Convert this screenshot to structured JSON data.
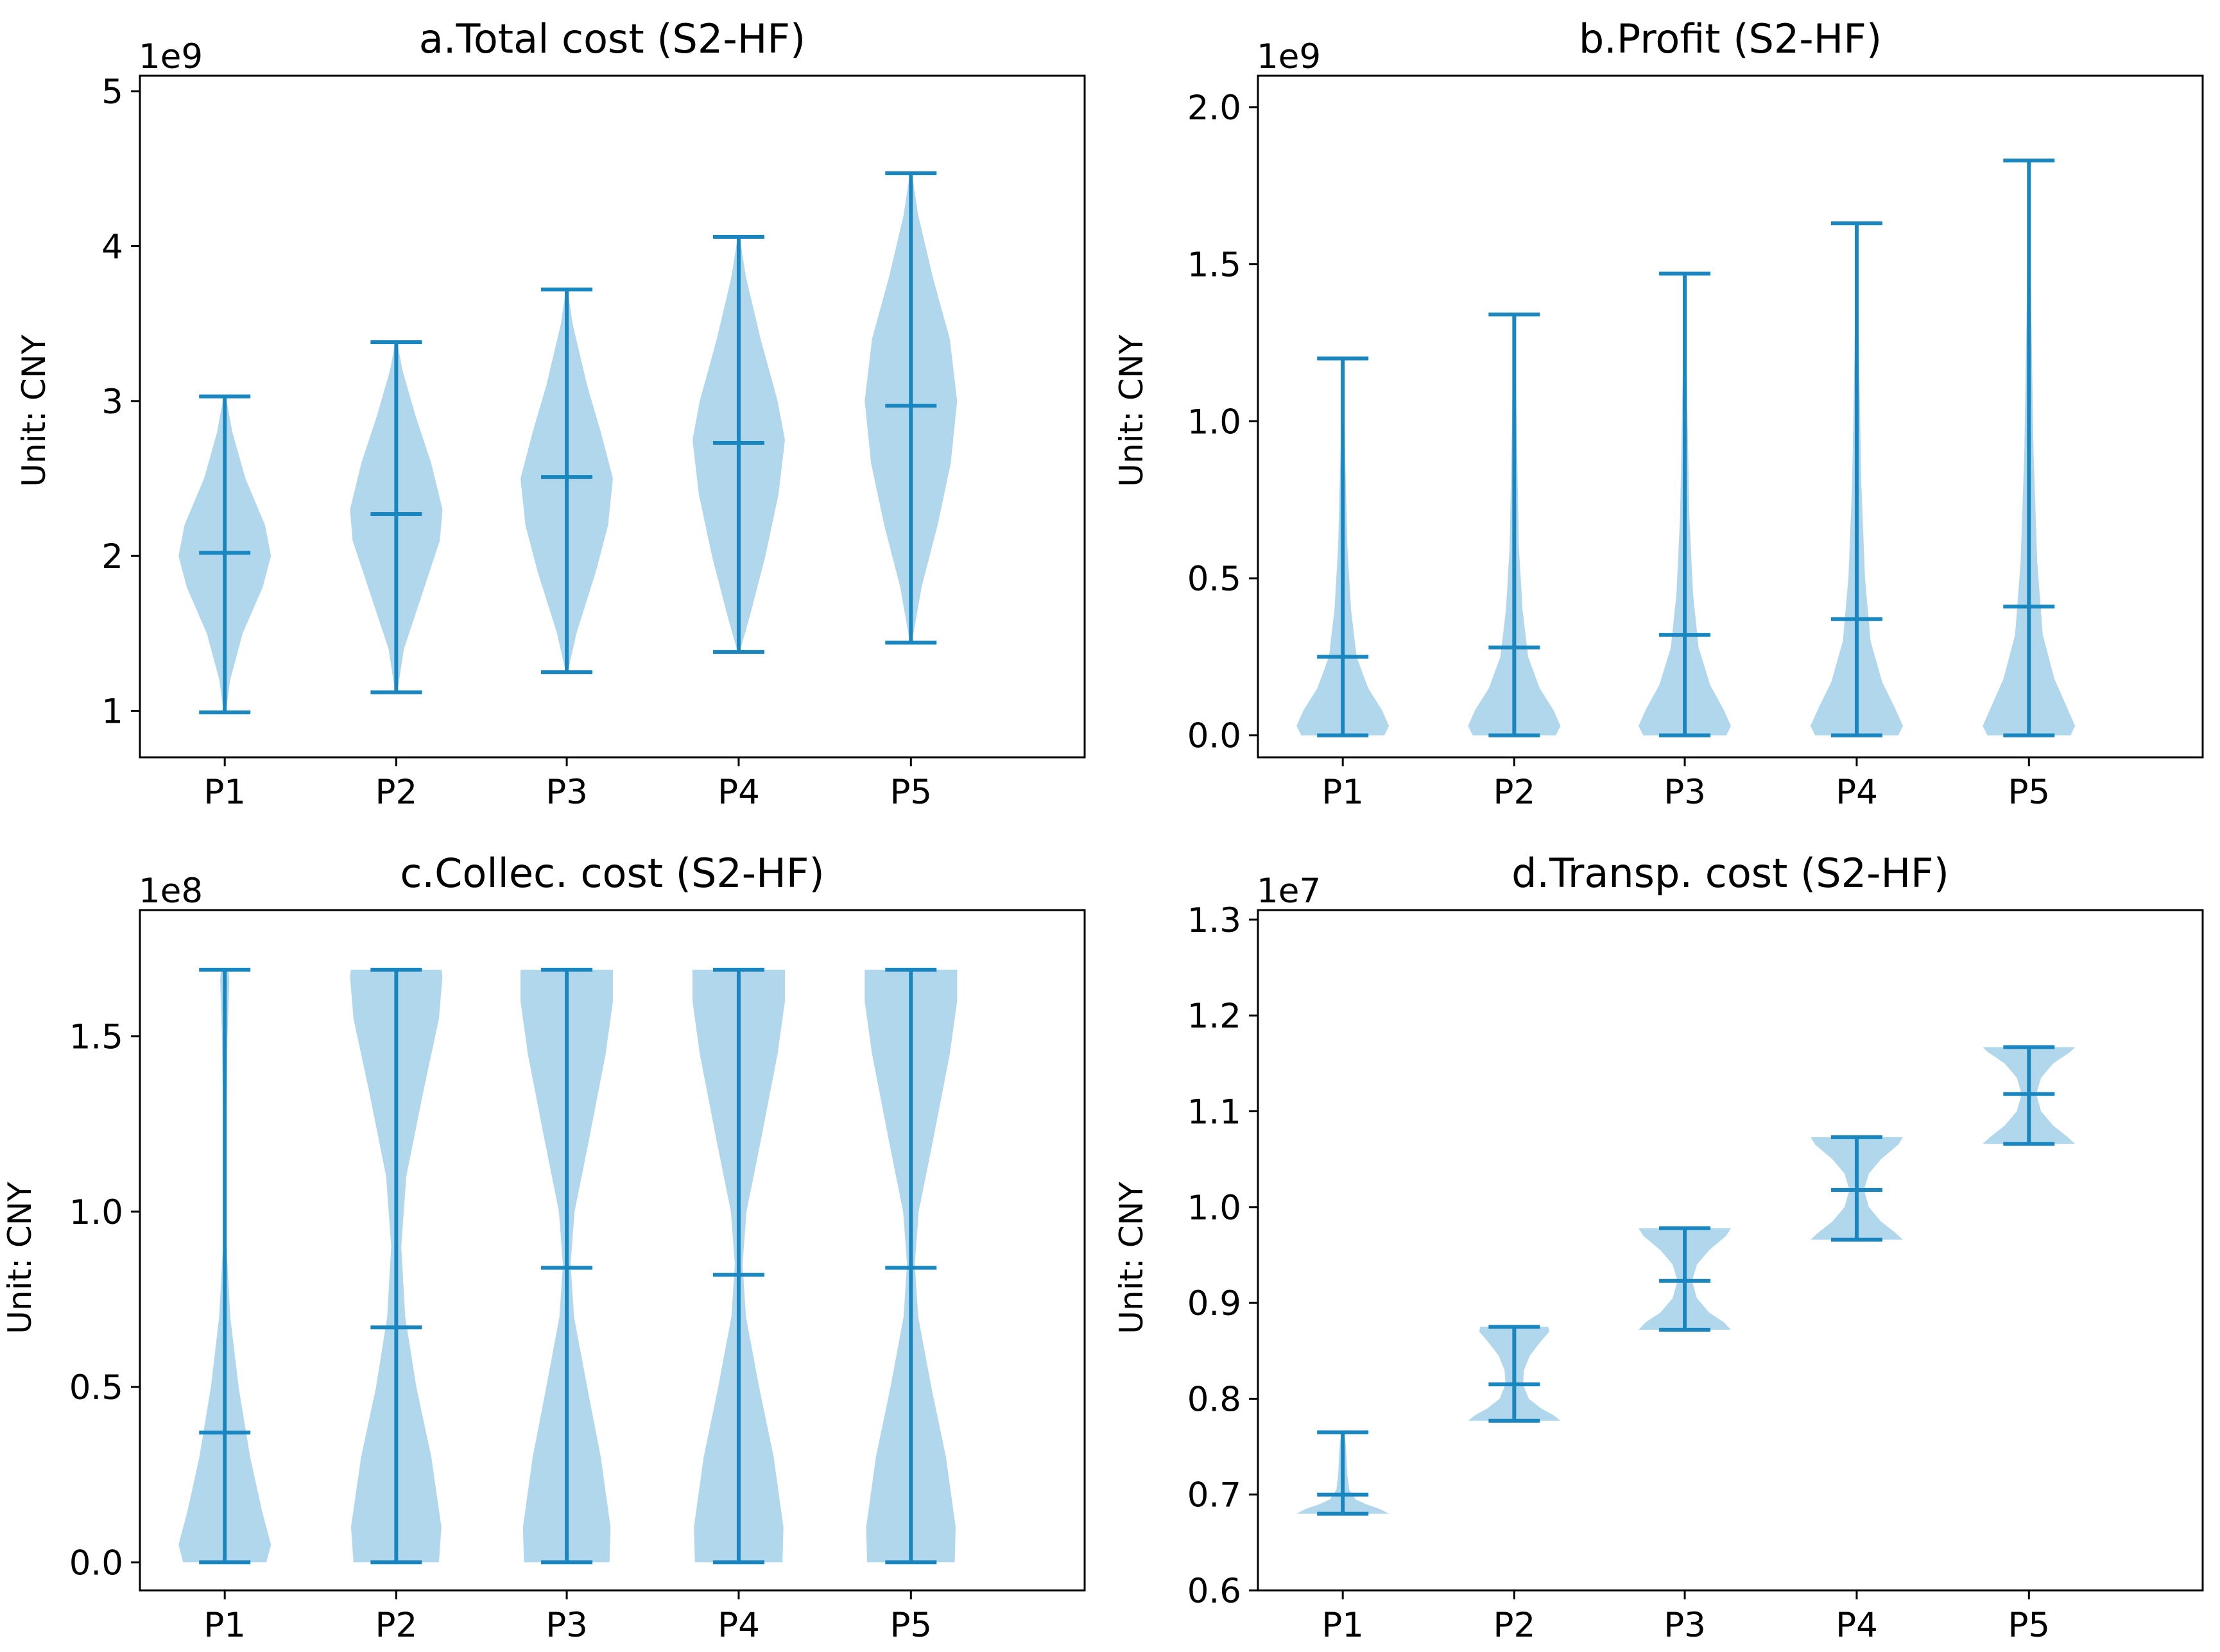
{
  "figure_label": "Violin plots of cost and profit distributions (S2-HF)",
  "chart_data": [
    {
      "type": "violin",
      "title": "a.Total cost (S2-HF)",
      "ylabel": "Unit: CNY",
      "multiplier": "1e9",
      "scale": 1000000000,
      "categories": [
        "P1",
        "P2",
        "P3",
        "P4",
        "P5"
      ],
      "ylim": [
        0.7,
        5.1
      ],
      "yticks": [
        1,
        2,
        3,
        4,
        5
      ],
      "ytick_labels": [
        "1",
        "2",
        "3",
        "4",
        "5"
      ],
      "series": [
        {
          "name": "P1",
          "min": 0.99,
          "median": 2.02,
          "max": 3.03,
          "density": [
            [
              0.99,
              0.02
            ],
            [
              1.2,
              0.1
            ],
            [
              1.5,
              0.33
            ],
            [
              1.8,
              0.7
            ],
            [
              2.0,
              0.85
            ],
            [
              2.2,
              0.74
            ],
            [
              2.5,
              0.38
            ],
            [
              2.8,
              0.14
            ],
            [
              3.03,
              0.02
            ]
          ]
        },
        {
          "name": "P2",
          "min": 1.12,
          "median": 2.27,
          "max": 3.38,
          "density": [
            [
              1.12,
              0.02
            ],
            [
              1.4,
              0.15
            ],
            [
              1.8,
              0.55
            ],
            [
              2.1,
              0.85
            ],
            [
              2.3,
              0.9
            ],
            [
              2.6,
              0.68
            ],
            [
              2.9,
              0.38
            ],
            [
              3.2,
              0.12
            ],
            [
              3.38,
              0.02
            ]
          ]
        },
        {
          "name": "P3",
          "min": 1.25,
          "median": 2.51,
          "max": 3.72,
          "density": [
            [
              1.25,
              0.02
            ],
            [
              1.5,
              0.2
            ],
            [
              1.9,
              0.6
            ],
            [
              2.2,
              0.85
            ],
            [
              2.5,
              0.95
            ],
            [
              2.8,
              0.7
            ],
            [
              3.1,
              0.42
            ],
            [
              3.5,
              0.12
            ],
            [
              3.72,
              0.02
            ]
          ]
        },
        {
          "name": "P4",
          "min": 1.38,
          "median": 2.73,
          "max": 4.06,
          "density": [
            [
              1.38,
              0.02
            ],
            [
              1.6,
              0.22
            ],
            [
              2.0,
              0.55
            ],
            [
              2.4,
              0.82
            ],
            [
              2.75,
              0.95
            ],
            [
              3.0,
              0.8
            ],
            [
              3.4,
              0.45
            ],
            [
              3.8,
              0.15
            ],
            [
              4.06,
              0.02
            ]
          ]
        },
        {
          "name": "P5",
          "min": 1.44,
          "median": 2.97,
          "max": 4.47,
          "density": [
            [
              1.44,
              0.02
            ],
            [
              1.8,
              0.22
            ],
            [
              2.2,
              0.55
            ],
            [
              2.6,
              0.82
            ],
            [
              3.0,
              0.95
            ],
            [
              3.4,
              0.8
            ],
            [
              3.8,
              0.45
            ],
            [
              4.2,
              0.15
            ],
            [
              4.47,
              0.02
            ]
          ]
        }
      ]
    },
    {
      "type": "violin",
      "title": "b.Profit (S2-HF)",
      "ylabel": "Unit: CNY",
      "multiplier": "1e9",
      "scale": 1000000000,
      "categories": [
        "P1",
        "P2",
        "P3",
        "P4",
        "P5"
      ],
      "ylim": [
        -0.07,
        2.1
      ],
      "yticks": [
        0.0,
        0.5,
        1.0,
        1.5,
        2.0
      ],
      "ytick_labels": [
        "0.0",
        "0.5",
        "1.0",
        "1.5",
        "2.0"
      ],
      "series": [
        {
          "name": "P1",
          "min": 0.0,
          "median": 0.25,
          "max": 1.2,
          "density": [
            [
              0.0,
              0.9
            ],
            [
              0.03,
              1.0
            ],
            [
              0.08,
              0.85
            ],
            [
              0.15,
              0.55
            ],
            [
              0.25,
              0.3
            ],
            [
              0.4,
              0.18
            ],
            [
              0.6,
              0.1
            ],
            [
              0.9,
              0.05
            ],
            [
              1.2,
              0.01
            ]
          ]
        },
        {
          "name": "P2",
          "min": 0.0,
          "median": 0.28,
          "max": 1.34,
          "density": [
            [
              0.0,
              0.9
            ],
            [
              0.03,
              1.0
            ],
            [
              0.08,
              0.85
            ],
            [
              0.15,
              0.55
            ],
            [
              0.25,
              0.3
            ],
            [
              0.4,
              0.18
            ],
            [
              0.6,
              0.1
            ],
            [
              1.0,
              0.05
            ],
            [
              1.34,
              0.01
            ]
          ]
        },
        {
          "name": "P3",
          "min": 0.0,
          "median": 0.32,
          "max": 1.47,
          "density": [
            [
              0.0,
              0.9
            ],
            [
              0.03,
              1.0
            ],
            [
              0.08,
              0.85
            ],
            [
              0.16,
              0.55
            ],
            [
              0.28,
              0.3
            ],
            [
              0.45,
              0.18
            ],
            [
              0.7,
              0.1
            ],
            [
              1.1,
              0.05
            ],
            [
              1.47,
              0.01
            ]
          ]
        },
        {
          "name": "P4",
          "min": 0.0,
          "median": 0.37,
          "max": 1.63,
          "density": [
            [
              0.0,
              0.9
            ],
            [
              0.03,
              1.0
            ],
            [
              0.08,
              0.85
            ],
            [
              0.17,
              0.55
            ],
            [
              0.3,
              0.3
            ],
            [
              0.5,
              0.18
            ],
            [
              0.8,
              0.1
            ],
            [
              1.2,
              0.05
            ],
            [
              1.63,
              0.01
            ]
          ]
        },
        {
          "name": "P5",
          "min": 0.0,
          "median": 0.41,
          "max": 1.83,
          "density": [
            [
              0.0,
              0.9
            ],
            [
              0.03,
              1.0
            ],
            [
              0.08,
              0.85
            ],
            [
              0.18,
              0.55
            ],
            [
              0.32,
              0.3
            ],
            [
              0.55,
              0.18
            ],
            [
              0.9,
              0.1
            ],
            [
              1.35,
              0.05
            ],
            [
              1.83,
              0.01
            ]
          ]
        }
      ]
    },
    {
      "type": "violin",
      "title": "c.Collec. cost (S2-HF)",
      "ylabel": "Unit: CNY",
      "multiplier": "1e8",
      "scale": 100000000,
      "categories": [
        "P1",
        "P2",
        "P3",
        "P4",
        "P5"
      ],
      "ylim": [
        -0.08,
        1.86
      ],
      "yticks": [
        0.0,
        0.5,
        1.0,
        1.5
      ],
      "ytick_labels": [
        "0.0",
        "0.5",
        "1.0",
        "1.5"
      ],
      "series": [
        {
          "name": "P1",
          "min": 0.0,
          "median": 0.37,
          "max": 1.69,
          "density": [
            [
              0.0,
              0.9
            ],
            [
              0.05,
              1.0
            ],
            [
              0.15,
              0.8
            ],
            [
              0.3,
              0.55
            ],
            [
              0.5,
              0.3
            ],
            [
              0.7,
              0.12
            ],
            [
              0.9,
              0.04
            ],
            [
              1.2,
              0.03
            ],
            [
              1.5,
              0.06
            ],
            [
              1.66,
              0.1
            ],
            [
              1.69,
              0.08
            ]
          ]
        },
        {
          "name": "P2",
          "min": 0.0,
          "median": 0.67,
          "max": 1.69,
          "density": [
            [
              0.0,
              0.85
            ],
            [
              0.1,
              0.9
            ],
            [
              0.3,
              0.7
            ],
            [
              0.5,
              0.4
            ],
            [
              0.7,
              0.18
            ],
            [
              0.9,
              0.1
            ],
            [
              1.1,
              0.2
            ],
            [
              1.35,
              0.55
            ],
            [
              1.55,
              0.85
            ],
            [
              1.67,
              0.92
            ],
            [
              1.69,
              0.9
            ]
          ]
        },
        {
          "name": "P3",
          "min": 0.0,
          "median": 0.84,
          "max": 1.69,
          "density": [
            [
              0.0,
              0.88
            ],
            [
              0.1,
              0.9
            ],
            [
              0.3,
              0.7
            ],
            [
              0.5,
              0.42
            ],
            [
              0.7,
              0.15
            ],
            [
              0.85,
              0.08
            ],
            [
              1.0,
              0.16
            ],
            [
              1.2,
              0.45
            ],
            [
              1.45,
              0.8
            ],
            [
              1.6,
              0.95
            ],
            [
              1.69,
              0.95
            ]
          ]
        },
        {
          "name": "P4",
          "min": 0.0,
          "median": 0.82,
          "max": 1.69,
          "density": [
            [
              0.0,
              0.9
            ],
            [
              0.1,
              0.92
            ],
            [
              0.3,
              0.72
            ],
            [
              0.5,
              0.42
            ],
            [
              0.7,
              0.15
            ],
            [
              0.85,
              0.08
            ],
            [
              1.0,
              0.16
            ],
            [
              1.2,
              0.45
            ],
            [
              1.45,
              0.8
            ],
            [
              1.6,
              0.95
            ],
            [
              1.69,
              0.95
            ]
          ]
        },
        {
          "name": "P5",
          "min": 0.0,
          "median": 0.84,
          "max": 1.69,
          "density": [
            [
              0.0,
              0.9
            ],
            [
              0.1,
              0.92
            ],
            [
              0.3,
              0.72
            ],
            [
              0.5,
              0.42
            ],
            [
              0.7,
              0.15
            ],
            [
              0.85,
              0.08
            ],
            [
              1.0,
              0.16
            ],
            [
              1.2,
              0.45
            ],
            [
              1.45,
              0.8
            ],
            [
              1.6,
              0.95
            ],
            [
              1.69,
              0.95
            ]
          ]
        }
      ]
    },
    {
      "type": "violin",
      "title": "d.Transp. cost (S2-HF)",
      "ylabel": "Unit: CNY",
      "multiplier": "1e7",
      "scale": 10000000,
      "categories": [
        "P1",
        "P2",
        "P3",
        "P4",
        "P5"
      ],
      "ylim": [
        0.6,
        1.31
      ],
      "yticks": [
        0.6,
        0.7,
        0.8,
        0.9,
        1.0,
        1.1,
        1.2,
        1.3
      ],
      "ytick_labels": [
        "0.6",
        "0.7",
        "0.8",
        "0.9",
        "1.0",
        "1.1",
        "1.2",
        "1.3"
      ],
      "series": [
        {
          "name": "P1",
          "min": 0.68,
          "median": 0.7,
          "max": 0.765,
          "density": [
            [
              0.68,
              1.0
            ],
            [
              0.685,
              0.8
            ],
            [
              0.69,
              0.5
            ],
            [
              0.695,
              0.28
            ],
            [
              0.705,
              0.14
            ],
            [
              0.72,
              0.1
            ],
            [
              0.74,
              0.08
            ],
            [
              0.755,
              0.06
            ],
            [
              0.765,
              0.03
            ]
          ]
        },
        {
          "name": "P2",
          "min": 0.777,
          "median": 0.815,
          "max": 0.875,
          "density": [
            [
              0.777,
              0.95
            ],
            [
              0.783,
              0.8
            ],
            [
              0.79,
              0.55
            ],
            [
              0.8,
              0.3
            ],
            [
              0.815,
              0.18
            ],
            [
              0.83,
              0.2
            ],
            [
              0.845,
              0.32
            ],
            [
              0.86,
              0.55
            ],
            [
              0.87,
              0.72
            ],
            [
              0.875,
              0.7
            ]
          ]
        },
        {
          "name": "P3",
          "min": 0.872,
          "median": 0.923,
          "max": 0.978,
          "density": [
            [
              0.872,
              0.95
            ],
            [
              0.88,
              0.8
            ],
            [
              0.89,
              0.5
            ],
            [
              0.905,
              0.25
            ],
            [
              0.923,
              0.15
            ],
            [
              0.94,
              0.25
            ],
            [
              0.955,
              0.5
            ],
            [
              0.97,
              0.85
            ],
            [
              0.978,
              0.95
            ]
          ]
        },
        {
          "name": "P4",
          "min": 0.966,
          "median": 1.018,
          "max": 1.073,
          "density": [
            [
              0.966,
              0.95
            ],
            [
              0.973,
              0.8
            ],
            [
              0.985,
              0.5
            ],
            [
              1.0,
              0.25
            ],
            [
              1.018,
              0.15
            ],
            [
              1.035,
              0.25
            ],
            [
              1.05,
              0.5
            ],
            [
              1.065,
              0.85
            ],
            [
              1.073,
              0.95
            ]
          ]
        },
        {
          "name": "P5",
          "min": 1.066,
          "median": 1.118,
          "max": 1.167,
          "density": [
            [
              1.066,
              0.95
            ],
            [
              1.073,
              0.8
            ],
            [
              1.085,
              0.5
            ],
            [
              1.1,
              0.25
            ],
            [
              1.118,
              0.15
            ],
            [
              1.135,
              0.25
            ],
            [
              1.15,
              0.5
            ],
            [
              1.162,
              0.85
            ],
            [
              1.167,
              0.95
            ]
          ]
        }
      ]
    }
  ]
}
